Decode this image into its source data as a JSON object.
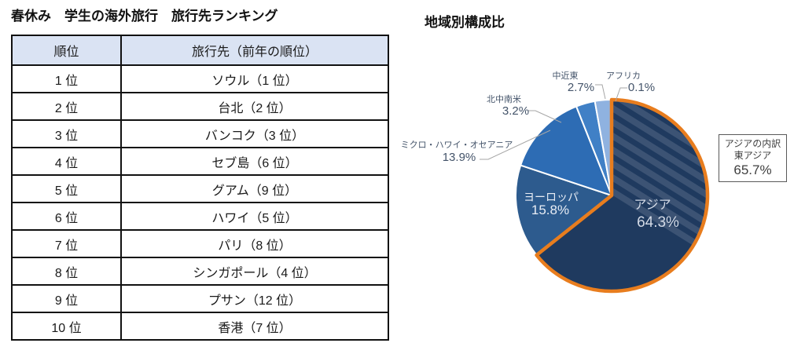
{
  "ranking": {
    "title": "春休み　学生の海外旅行　旅行先ランキング",
    "columns": [
      "順位",
      "旅行先（前年の順位）"
    ],
    "rows": [
      [
        "1 位",
        "ソウル（1 位）"
      ],
      [
        "2 位",
        "台北（2 位）"
      ],
      [
        "3 位",
        "バンコク（3 位）"
      ],
      [
        "4 位",
        "セブ島（6 位）"
      ],
      [
        "5 位",
        "グアム（9 位）"
      ],
      [
        "6 位",
        "ハワイ（5 位）"
      ],
      [
        "7 位",
        "パリ（8 位）"
      ],
      [
        "8 位",
        "シンガポール（4 位）"
      ],
      [
        "9 位",
        "プサン（12 位）"
      ],
      [
        "10 位",
        "香港（7 位）"
      ]
    ],
    "header_bg": "#dae3f3"
  },
  "chart_data": {
    "type": "pie",
    "title": "地域別構成比",
    "start_angle_deg": 0,
    "direction": "clockwise",
    "slices": [
      {
        "key": "asia",
        "label": "アジア",
        "value": 64.3,
        "color": "#1f3a5f",
        "label_inside": true,
        "highlight_outline": "#e87d1e",
        "hatched_until_deg": 122
      },
      {
        "key": "europe",
        "label": "ヨーロッパ",
        "value": 15.8,
        "color": "#2d5b8e",
        "label_inside": true
      },
      {
        "key": "micronesia-hawaii-oceania",
        "label": "ミクロ・ハワイ・オセアニア",
        "value": 13.9,
        "color": "#2d6cb4",
        "label_inside": false
      },
      {
        "key": "americas",
        "label": "北中南米",
        "value": 3.2,
        "color": "#4080c6",
        "label_inside": false
      },
      {
        "key": "middle-east",
        "label": "中近東",
        "value": 2.7,
        "color": "#8fb2e0",
        "label_inside": false
      },
      {
        "key": "africa",
        "label": "アフリカ",
        "value": 0.1,
        "color": "#bdd7ee",
        "label_inside": false
      }
    ],
    "annotation_box": {
      "line1": "アジアの内訳",
      "line2": "東アジア",
      "line3": "65.7%"
    },
    "colors": {
      "outside_label": "#44546a",
      "inside_label": "#e8edf5",
      "leader_line": "#a6a6a6"
    },
    "legend_position": "none",
    "grid": false
  }
}
